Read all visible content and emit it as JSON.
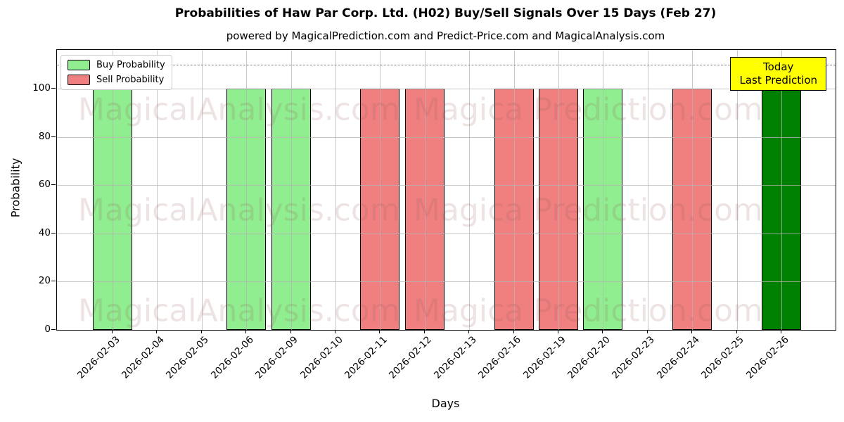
{
  "title": "Probabilities of Haw Par Corp. Ltd. (H02) Buy/Sell Signals Over 15 Days (Feb 27)",
  "subtitle": "powered by MagicalPrediction.com and Predict-Price.com and MagicalAnalysis.com",
  "axes": {
    "x_label": "Days",
    "y_label": "Probability",
    "y_ticks": [
      0,
      20,
      40,
      60,
      80,
      100
    ],
    "y_max": 116,
    "threshold_line": 110
  },
  "legend": {
    "items": [
      {
        "label": "Buy Probability",
        "color": "#90EE90"
      },
      {
        "label": "Sell Probability",
        "color": "#F08080"
      }
    ]
  },
  "annotation_box": {
    "lines": [
      "Today",
      "Last Prediction"
    ],
    "bg": "#FFFF00"
  },
  "watermarks": [
    "MagicalAnalysis.com",
    "Magica Prediction.com"
  ],
  "colors": {
    "buy": "#90EE90",
    "sell": "#F08080",
    "today_buy": "#008000",
    "bar_edge": "#000000",
    "grid": "#b4b4b4",
    "dashed_line": "#7f7f7f"
  },
  "chart_data": {
    "type": "bar",
    "title": "Probabilities of Haw Par Corp. Ltd. (H02) Buy/Sell Signals Over 15 Days (Feb 27)",
    "xlabel": "Days",
    "ylabel": "Probability",
    "ylim": [
      0,
      116
    ],
    "grid": true,
    "legend_position": "upper left",
    "dashed_reference_y": 110,
    "categories": [
      "2026-02-03",
      "2026-02-04",
      "2026-02-05",
      "2026-02-06",
      "2026-02-09",
      "2026-02-10",
      "2026-02-11",
      "2026-02-12",
      "2026-02-13",
      "2026-02-16",
      "2026-02-19",
      "2026-02-20",
      "2026-02-23",
      "2026-02-24",
      "2026-02-25",
      "2026-02-26"
    ],
    "bars": [
      {
        "date": "2026-02-03",
        "signal": "buy",
        "value": 100
      },
      {
        "date": "2026-02-04",
        "signal": "none",
        "value": 0
      },
      {
        "date": "2026-02-05",
        "signal": "none",
        "value": 0
      },
      {
        "date": "2026-02-06",
        "signal": "buy",
        "value": 100
      },
      {
        "date": "2026-02-09",
        "signal": "buy",
        "value": 100
      },
      {
        "date": "2026-02-10",
        "signal": "none",
        "value": 0
      },
      {
        "date": "2026-02-11",
        "signal": "sell",
        "value": 100
      },
      {
        "date": "2026-02-12",
        "signal": "sell",
        "value": 100
      },
      {
        "date": "2026-02-13",
        "signal": "none",
        "value": 0
      },
      {
        "date": "2026-02-16",
        "signal": "sell",
        "value": 100
      },
      {
        "date": "2026-02-19",
        "signal": "sell",
        "value": 100
      },
      {
        "date": "2026-02-20",
        "signal": "buy",
        "value": 100
      },
      {
        "date": "2026-02-23",
        "signal": "none",
        "value": 0
      },
      {
        "date": "2026-02-24",
        "signal": "sell",
        "value": 100
      },
      {
        "date": "2026-02-25",
        "signal": "none",
        "value": 0
      },
      {
        "date": "2026-02-26",
        "signal": "today_buy",
        "value": 100
      }
    ],
    "series": [
      {
        "name": "Buy Probability",
        "values": [
          100,
          0,
          0,
          100,
          100,
          0,
          0,
          0,
          0,
          0,
          0,
          100,
          0,
          0,
          0,
          0
        ]
      },
      {
        "name": "Sell Probability",
        "values": [
          0,
          0,
          0,
          0,
          0,
          0,
          100,
          100,
          0,
          100,
          100,
          0,
          0,
          100,
          0,
          0
        ]
      },
      {
        "name": "Today Last Prediction (Buy)",
        "values": [
          0,
          0,
          0,
          0,
          0,
          0,
          0,
          0,
          0,
          0,
          0,
          0,
          0,
          0,
          0,
          100
        ]
      }
    ]
  }
}
